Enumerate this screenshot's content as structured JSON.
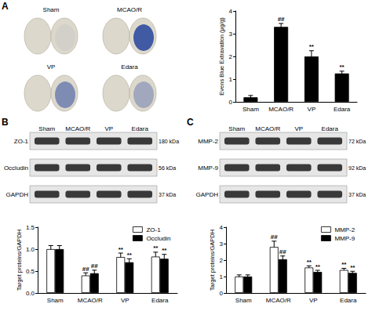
{
  "chart_data": [
    {
      "panel": "A",
      "type": "bar",
      "categories": [
        "Sham",
        "MCAO/R",
        "VP",
        "Edara"
      ],
      "values": [
        0.2,
        3.3,
        2.0,
        1.25
      ],
      "errors": [
        0.08,
        0.15,
        0.25,
        0.1
      ],
      "significance": [
        null,
        "##",
        "**",
        "**"
      ],
      "color": "#000000",
      "ylabel": "Evens Blue Extravation (μg/g)",
      "ylim": [
        0,
        4
      ],
      "yticks": [
        0,
        1,
        2,
        3,
        4
      ]
    },
    {
      "panel": "B",
      "type": "bar",
      "categories": [
        "Sham",
        "MCAO/R",
        "VP",
        "Edara"
      ],
      "series": [
        {
          "name": "ZO-1",
          "color": "#ffffff",
          "values": [
            1.0,
            0.4,
            0.82,
            0.83
          ],
          "errors": [
            0.08,
            0.06,
            0.09,
            0.1
          ],
          "significance": [
            null,
            "##",
            "**",
            "**"
          ]
        },
        {
          "name": "Occludin",
          "color": "#000000",
          "values": [
            1.0,
            0.45,
            0.7,
            0.78
          ],
          "errors": [
            0.08,
            0.07,
            0.08,
            0.1
          ],
          "significance": [
            null,
            "##",
            "**",
            "**"
          ]
        }
      ],
      "ylabel": "Target proteins/GAPDH",
      "ylim": [
        0,
        1.5
      ],
      "yticks": [
        {
          "value": 0,
          "label": "0.0"
        },
        {
          "value": 0.5,
          "label": "0.5"
        },
        {
          "value": 1,
          "label": "1.0"
        },
        {
          "value": 1.5,
          "label": "1.5"
        }
      ],
      "legend": "upper right"
    },
    {
      "panel": "C",
      "type": "bar",
      "categories": [
        "Sham",
        "MCAO/R",
        "VP",
        "Edara"
      ],
      "series": [
        {
          "name": "MMP-2",
          "color": "#ffffff",
          "values": [
            1.0,
            2.8,
            1.55,
            1.4
          ],
          "errors": [
            0.1,
            0.35,
            0.1,
            0.1
          ],
          "significance": [
            null,
            "##",
            "**",
            "**"
          ]
        },
        {
          "name": "MMP-9",
          "color": "#000000",
          "values": [
            1.0,
            2.05,
            1.28,
            1.22
          ],
          "errors": [
            0.1,
            0.2,
            0.1,
            0.1
          ],
          "significance": [
            null,
            "##",
            "**",
            "**"
          ]
        }
      ],
      "ylabel": "Target proteins/GAPDH",
      "ylim": [
        0,
        4
      ],
      "yticks": [
        0,
        1,
        2,
        3,
        4
      ],
      "legend": "upper right"
    }
  ],
  "images": {
    "labels": [
      "Sham",
      "MCAO/R",
      "VP",
      "Edara"
    ]
  },
  "blots": [
    {
      "lanes": [
        "Sham",
        "MCAO/R",
        "VP",
        "Edara"
      ],
      "rows": [
        {
          "name": "ZO-1",
          "size": "180 kDa"
        },
        {
          "name": "Occludin",
          "size": "56 kDa"
        },
        {
          "name": "GAPDH",
          "size": "37 kDa"
        }
      ]
    },
    {
      "lanes": [
        "Sham",
        "MCAO/R",
        "VP",
        "Edara"
      ],
      "rows": [
        {
          "name": "MMP-2",
          "size": "72 kDa"
        },
        {
          "name": "MMP-9",
          "size": "92 kDa"
        },
        {
          "name": "GAPDH",
          "size": "37 kDa"
        }
      ]
    }
  ]
}
